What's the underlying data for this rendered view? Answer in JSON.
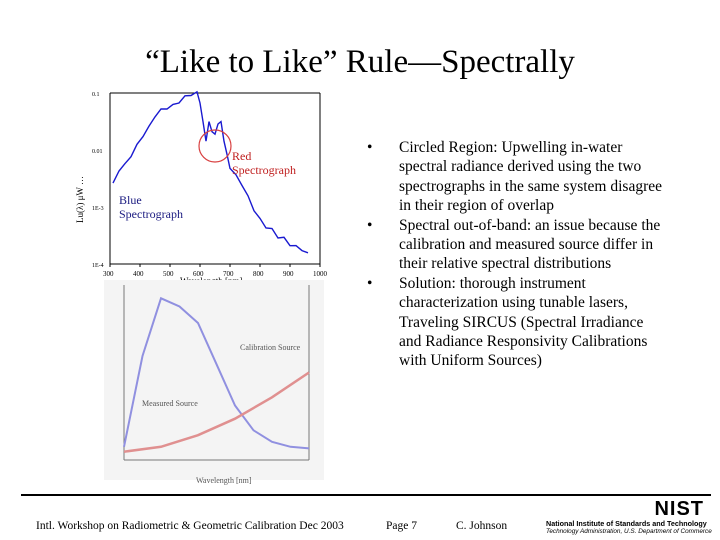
{
  "slide": {
    "title": "“Like to Like” Rule—Spectrally"
  },
  "bullets": [
    {
      "marker": "•",
      "text": "Circled Region:  Upwelling in-water spectral radiance derived using the two spectrographs in the same system disagree in their region of overlap"
    },
    {
      "marker": "•",
      "text": "Spectral out-of-band:  an issue because the calibration and measured source differ in their relative spectral distributions"
    },
    {
      "marker": "•",
      "text": "Solution:  thorough instrument characterization using tunable lasers, Traveling SIRCUS (Spectral Irradiance and Radiance Responsivity Calibrations with Uniform Sources)"
    }
  ],
  "footer": {
    "workshop": "Intl. Workshop on Radiometric & Geometric Calibration  Dec 2003",
    "page": "Page 7",
    "author": "C. Johnson"
  },
  "logo": {
    "name": "NIST",
    "line1": "National Institute of Standards and Technology",
    "line2": "Technology Administration, U.S. Department of Commerce"
  },
  "chart_data": [
    {
      "type": "line",
      "xlabel": "Wavelength [nm]",
      "ylabel": "Lu(λ) μW …",
      "x_ticks": [
        "300",
        "400",
        "500",
        "600",
        "700",
        "800",
        "900",
        "1000"
      ],
      "xlim": [
        300,
        1000
      ],
      "y_ticks": [
        "0.1",
        "0.01",
        "1E-3",
        "1E-4"
      ],
      "y_scale": "log",
      "ylim": [
        0.0001,
        0.1
      ],
      "annotations": [
        "Red Spectrograph",
        "Blue Spectrograph"
      ],
      "colors": {
        "line": "#1a1ad0",
        "circle": "#d84040"
      },
      "series": [
        {
          "x": [
            310,
            330,
            350,
            370,
            390,
            410,
            430,
            450,
            470,
            490,
            510,
            530,
            550,
            570,
            590,
            600,
            610,
            620,
            630,
            640,
            650,
            660,
            670,
            680,
            690,
            700,
            720,
            740,
            760,
            780,
            800,
            820,
            840,
            860,
            880,
            900,
            920,
            940,
            960
          ],
          "values": [
            0.0025,
            0.0045,
            0.0055,
            0.008,
            0.012,
            0.018,
            0.025,
            0.04,
            0.05,
            0.055,
            0.06,
            0.07,
            0.085,
            0.095,
            0.1,
            0.07,
            0.03,
            0.015,
            0.03,
            0.022,
            0.018,
            0.03,
            0.03,
            0.015,
            0.008,
            0.005,
            0.0035,
            0.0025,
            0.0015,
            0.0009,
            0.0006,
            0.00045,
            0.0004,
            0.0003,
            0.00028,
            0.00022,
            0.0002,
            0.00018,
            0.00015
          ]
        }
      ]
    },
    {
      "type": "line",
      "xlabel": "Wavelength [nm]",
      "annotations": [
        "Calibration Source",
        "Measured Source"
      ],
      "colors": {
        "measured": "#9090e0",
        "calibration": "#e09090"
      },
      "series": [
        {
          "name": "Measured Source",
          "x": [
            300,
            350,
            400,
            450,
            500,
            550,
            600,
            650,
            700,
            750,
            800
          ],
          "values": [
            0.05,
            0.6,
            0.95,
            0.9,
            0.8,
            0.55,
            0.3,
            0.15,
            0.08,
            0.05,
            0.04
          ]
        },
        {
          "name": "Calibration Source",
          "x": [
            300,
            400,
            500,
            600,
            700,
            800
          ],
          "values": [
            0.02,
            0.05,
            0.12,
            0.22,
            0.35,
            0.5
          ]
        }
      ]
    }
  ]
}
